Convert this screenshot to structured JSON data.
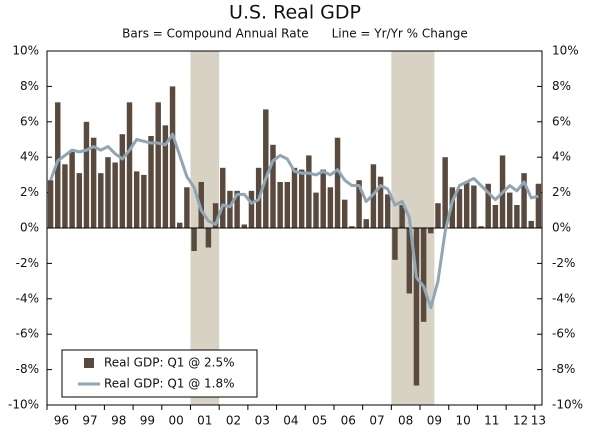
{
  "chart_data": {
    "type": "bar_line",
    "title": "U.S. Real GDP",
    "subtitle": "Bars = Compound Annual Rate      Line = Yr/Yr % Change",
    "categories": [
      "96",
      null,
      null,
      null,
      "97",
      null,
      null,
      null,
      "98",
      null,
      null,
      null,
      "99",
      null,
      null,
      null,
      "00",
      null,
      null,
      null,
      "01",
      null,
      null,
      null,
      "02",
      null,
      null,
      null,
      "03",
      null,
      null,
      null,
      "04",
      null,
      null,
      null,
      "05",
      null,
      null,
      null,
      "06",
      null,
      null,
      null,
      "07",
      null,
      null,
      null,
      "08",
      null,
      null,
      null,
      "09",
      null,
      null,
      null,
      "10",
      null,
      null,
      null,
      "11",
      null,
      null,
      null,
      "12",
      null,
      null,
      null,
      "13"
    ],
    "series": [
      {
        "name": "Real GDP: Q1 @ 2.5%",
        "kind": "bar",
        "color": "#5a4a3e",
        "values": [
          2.7,
          7.1,
          3.6,
          4.3,
          3.1,
          6.0,
          5.1,
          3.1,
          4.0,
          3.7,
          5.3,
          7.1,
          3.2,
          3.0,
          5.2,
          7.1,
          5.8,
          8.0,
          0.3,
          2.3,
          -1.3,
          2.6,
          -1.1,
          1.4,
          3.4,
          2.1,
          2.1,
          0.2,
          2.1,
          3.4,
          6.7,
          4.7,
          2.6,
          2.6,
          3.4,
          3.3,
          4.1,
          2.0,
          3.3,
          2.3,
          5.1,
          1.6,
          0.1,
          2.7,
          0.5,
          3.6,
          2.9,
          1.9,
          -1.8,
          1.3,
          -3.7,
          -8.9,
          -5.3,
          -0.3,
          1.4,
          4.0,
          2.3,
          2.2,
          2.6,
          2.4,
          0.1,
          2.5,
          1.3,
          4.1,
          2.0,
          1.3,
          3.1,
          0.4,
          2.5
        ]
      },
      {
        "name": "Real GDP: Q1 @ 1.8%",
        "kind": "line",
        "color": "#8fa6b5",
        "values": [
          2.7,
          3.8,
          4.1,
          4.4,
          4.3,
          4.4,
          4.6,
          4.4,
          4.6,
          4.2,
          3.9,
          4.4,
          5.0,
          4.9,
          4.8,
          4.8,
          4.7,
          5.3,
          4.1,
          2.9,
          2.3,
          1.0,
          0.4,
          0.2,
          1.3,
          1.2,
          1.9,
          1.9,
          1.4,
          1.6,
          2.8,
          3.8,
          4.1,
          3.9,
          3.2,
          3.1,
          3.1,
          3.0,
          3.2,
          3.0,
          3.3,
          2.7,
          2.4,
          2.4,
          1.5,
          1.9,
          2.4,
          2.2,
          1.3,
          1.5,
          0.6,
          -2.8,
          -3.3,
          -4.5,
          -3.0,
          -0.2,
          1.5,
          2.4,
          2.6,
          2.8,
          2.4,
          2.0,
          1.6,
          2.0,
          2.4,
          2.1,
          2.6,
          1.7,
          1.8
        ]
      }
    ],
    "shaded": [
      {
        "from": 20,
        "to": 23
      },
      {
        "from": 48,
        "to": 53
      }
    ],
    "shade_color": "#d8d2c4",
    "ylim": [
      -10,
      10
    ],
    "yticks": [
      {
        "value": -10,
        "label": "-10%"
      },
      {
        "value": -8,
        "label": "-8%"
      },
      {
        "value": -6,
        "label": "-6%"
      },
      {
        "value": -4,
        "label": "-4%"
      },
      {
        "value": -2,
        "label": "-2%"
      },
      {
        "value": 0,
        "label": "0%"
      },
      {
        "value": 2,
        "label": "2%"
      },
      {
        "value": 4,
        "label": "4%"
      },
      {
        "value": 6,
        "label": "6%"
      },
      {
        "value": 8,
        "label": "8%"
      },
      {
        "value": 10,
        "label": "10%"
      }
    ],
    "y2lim": [
      -10,
      10
    ],
    "y2ticks": [
      {
        "value": -10,
        "label": "-10%"
      },
      {
        "value": -8,
        "label": "-8%"
      },
      {
        "value": -6,
        "label": "-6%"
      },
      {
        "value": -4,
        "label": "-4%"
      },
      {
        "value": -2,
        "label": "-2%"
      },
      {
        "value": 0,
        "label": "0%"
      },
      {
        "value": 2,
        "label": "2%"
      },
      {
        "value": 4,
        "label": "4%"
      },
      {
        "value": 6,
        "label": "6%"
      },
      {
        "value": 8,
        "label": "8%"
      },
      {
        "value": 10,
        "label": "10%"
      }
    ],
    "legend": "lower left",
    "grid": false
  }
}
